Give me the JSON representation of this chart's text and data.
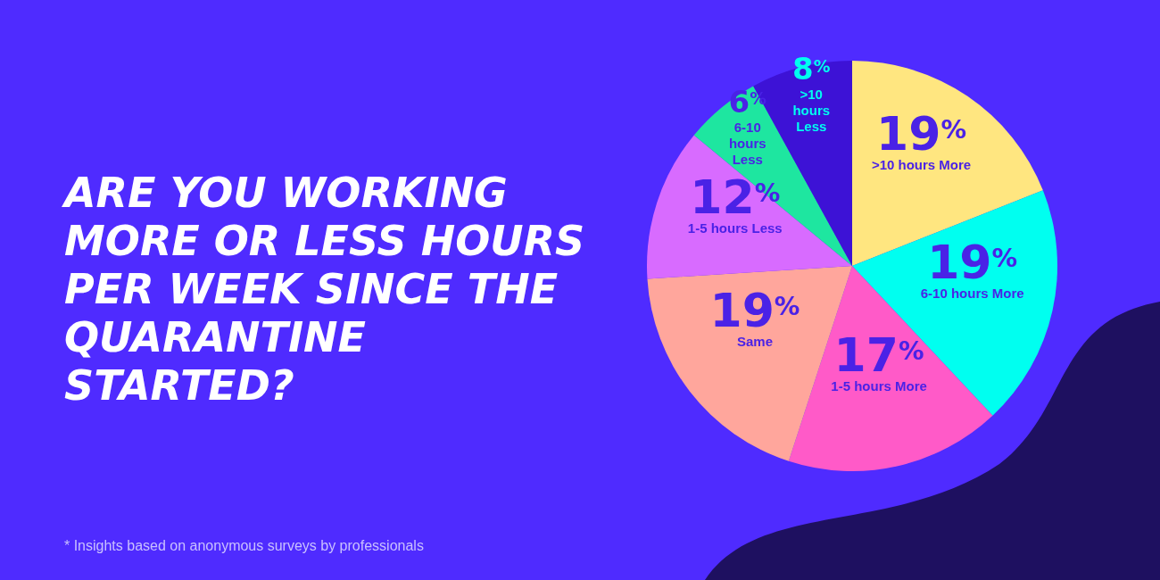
{
  "chart_data": {
    "type": "pie",
    "title": "ARE YOU WORKING MORE OR LESS HOURS PER WEEK SINCE THE QUARANTINE STARTED?",
    "categories": [
      ">10 hours More",
      "6-10 hours More",
      "1-5 hours More",
      "Same",
      "1-5 hours Less",
      "6-10 hours Less",
      ">10 hours Less"
    ],
    "values": [
      19,
      19,
      17,
      19,
      12,
      6,
      8
    ],
    "colors": [
      "#ffe680",
      "#00fff0",
      "#ff5ac8",
      "#ffa69c",
      "#d86bff",
      "#1ee6a0",
      "#3d12d6"
    ],
    "value_labels": [
      "19%",
      "19%",
      "17%",
      "19%",
      "12%",
      "6%",
      "8%"
    ],
    "annotations": [
      "* Insights based on anonymous surveys by professionals"
    ]
  }
}
